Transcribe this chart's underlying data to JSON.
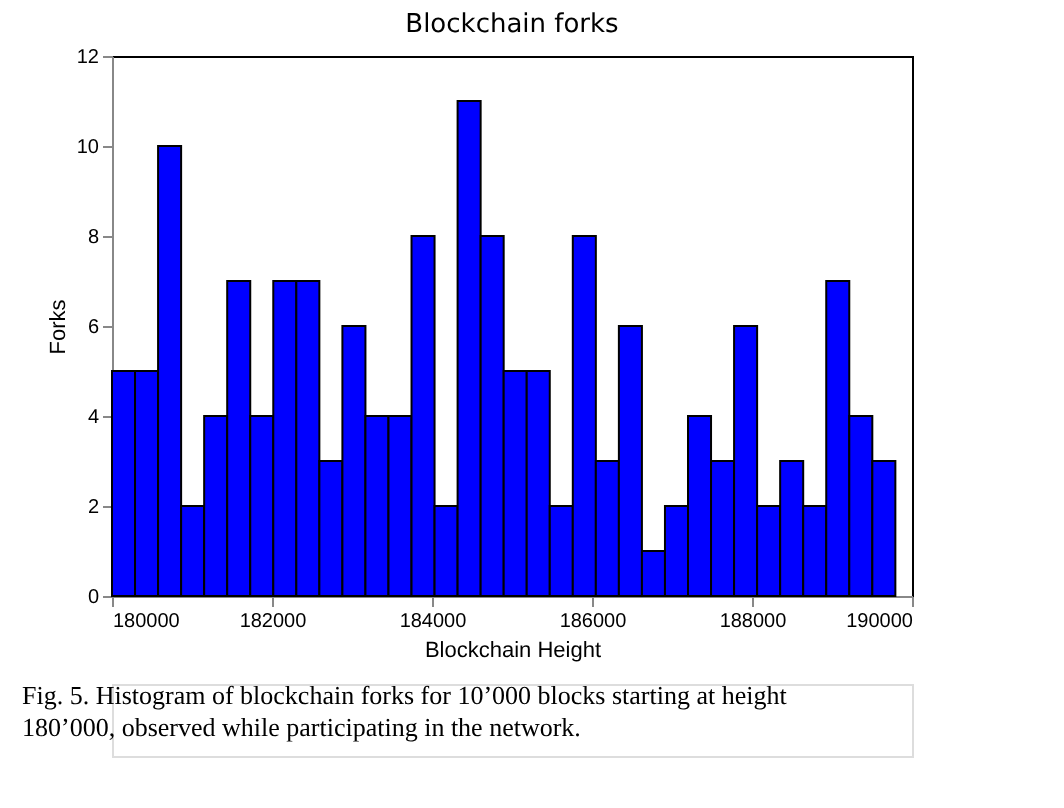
{
  "chart_data": {
    "type": "histogram",
    "title": "Blockchain forks",
    "xlabel": "Blockchain Height",
    "ylabel": "Forks",
    "bins": [
      180000,
      180288,
      180576,
      180864,
      181152,
      181440,
      181728,
      182016,
      182304,
      182592,
      182880,
      183168,
      183456,
      183744,
      184032,
      184320,
      184608,
      184896,
      185184,
      185472,
      185760,
      186048,
      186336,
      186624,
      186912,
      187200,
      187488,
      187776,
      188064,
      188352,
      188640,
      188928,
      189216,
      189504,
      189792
    ],
    "values": [
      5,
      5,
      10,
      2,
      4,
      7,
      4,
      7,
      7,
      3,
      6,
      4,
      4,
      8,
      2,
      11,
      8,
      5,
      5,
      2,
      8,
      3,
      6,
      1,
      2,
      4,
      3,
      6,
      2,
      3,
      2,
      7,
      4,
      3
    ],
    "color": "#0000ff",
    "xlim": [
      180000,
      190000
    ],
    "xticks": [
      180000,
      182000,
      184000,
      186000,
      188000,
      190000
    ],
    "ylim": [
      0,
      12
    ],
    "yticks": [
      0,
      2,
      4,
      6,
      8,
      10,
      12
    ],
    "grid": false,
    "annotations": [
      "Fig. 5.   Histogram of blockchain forks for 10’000 blocks starting at height 180’000, observed while participating in the network."
    ]
  }
}
